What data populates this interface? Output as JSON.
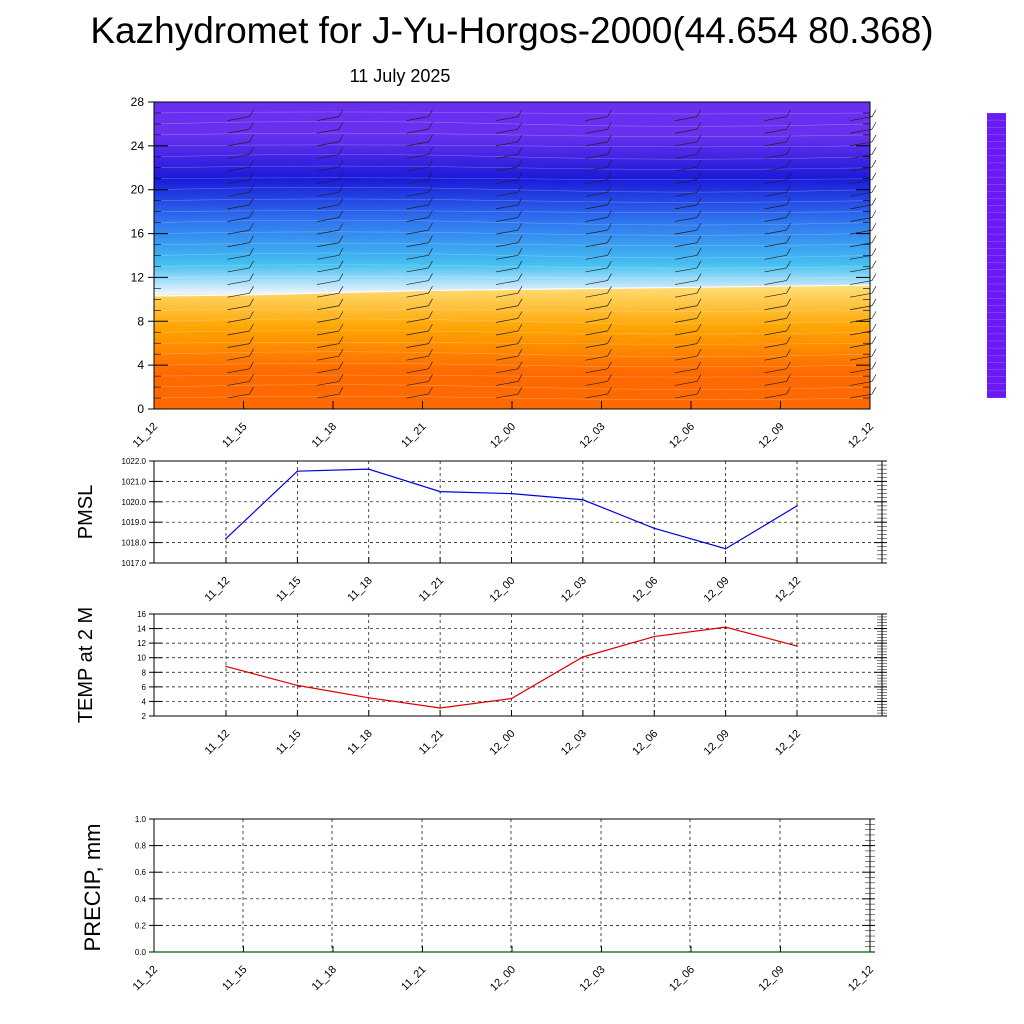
{
  "header": {
    "title": "Kazhydromet for J-Yu-Horgos-2000(44.654 80.368)",
    "date": "11 July 2025"
  },
  "chart_data": [
    {
      "type": "heatmap",
      "name": "cross-section",
      "x_ticks": [
        "11_12",
        "11_15",
        "11_18",
        "11_21",
        "12_00",
        "12_03",
        "12_06",
        "12_09",
        "12_12"
      ],
      "y_ticks": [
        0,
        4,
        8,
        12,
        16,
        20,
        24,
        28
      ],
      "ylim": [
        0,
        28
      ],
      "freezing_level": [
        10.3,
        10.4,
        10.6,
        10.8,
        10.9,
        11.0,
        11.1,
        11.2,
        11.3
      ],
      "colors": {
        "warm_low": "#ff6a00",
        "warm_mid": "#ffa400",
        "warm_high": "#ffe07a",
        "freeze": "#eef4ff",
        "cool_low": "#44c0f0",
        "cool_mid": "#2f78f0",
        "cold_mid": "#1a1ad8",
        "cold_top": "#6a30f0"
      },
      "colorbar": [
        "#6a1af2",
        "#4a24f0",
        "#2f3ff2",
        "#2f6af2",
        "#35a7f2",
        "#7ed0f2",
        "#d8ecf8",
        "#fff47a",
        "#ffd040",
        "#ffa020",
        "#ff7a10",
        "#f04a10",
        "#e01818",
        "#f06060",
        "#f6b6b6"
      ]
    },
    {
      "type": "line",
      "name": "pmsl",
      "ylabel": "PMSL",
      "categories": [
        "11_12",
        "11_15",
        "11_18",
        "11_21",
        "12_00",
        "12_03",
        "12_06",
        "12_09",
        "12_12"
      ],
      "values": [
        1018.2,
        1021.5,
        1021.6,
        1020.5,
        1020.4,
        1020.1,
        1018.7,
        1017.7,
        1019.8
      ],
      "ylim": [
        1017.0,
        1022.0
      ],
      "y_ticks": [
        "1017.0",
        "1018.0",
        "1019.0",
        "1020.0",
        "1021.0",
        "1022.0"
      ],
      "color": "#0000dd"
    },
    {
      "type": "line",
      "name": "temp",
      "ylabel": "TEMP at 2 M",
      "categories": [
        "11_12",
        "11_15",
        "11_18",
        "11_21",
        "12_00",
        "12_03",
        "12_06",
        "12_09",
        "12_12"
      ],
      "values": [
        8.8,
        6.2,
        4.5,
        3.1,
        4.4,
        10.1,
        12.9,
        14.2,
        11.6
      ],
      "ylim": [
        2,
        16
      ],
      "y_ticks": [
        "2",
        "4",
        "6",
        "8",
        "10",
        "12",
        "14",
        "16"
      ],
      "color": "#dd0000"
    },
    {
      "type": "line",
      "name": "precip",
      "ylabel": "PRECIP, mm",
      "categories": [
        "11_12",
        "11_15",
        "11_18",
        "11_21",
        "12_00",
        "12_03",
        "12_06",
        "12_09",
        "12_12"
      ],
      "values": [
        0,
        0,
        0,
        0,
        0,
        0,
        0,
        0,
        0
      ],
      "ylim": [
        0.0,
        1.0
      ],
      "y_ticks": [
        "0.0",
        "0.2",
        "0.4",
        "0.6",
        "0.8",
        "1.0"
      ],
      "color": "#006400"
    }
  ]
}
